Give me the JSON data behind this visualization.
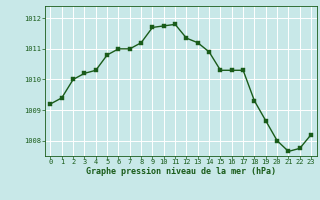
{
  "x": [
    0,
    1,
    2,
    3,
    4,
    5,
    6,
    7,
    8,
    9,
    10,
    11,
    12,
    13,
    14,
    15,
    16,
    17,
    18,
    19,
    20,
    21,
    22,
    23
  ],
  "y": [
    1009.2,
    1009.4,
    1010.0,
    1010.2,
    1010.3,
    1010.8,
    1011.0,
    1011.0,
    1011.2,
    1011.7,
    1011.75,
    1011.8,
    1011.35,
    1011.2,
    1010.9,
    1010.3,
    1010.3,
    1010.3,
    1009.3,
    1008.65,
    1008.0,
    1007.65,
    1007.75,
    1008.2
  ],
  "line_color": "#1a5c1a",
  "marker_color": "#1a5c1a",
  "bg_color": "#c8e8e8",
  "grid_color": "#ffffff",
  "xlabel": "Graphe pression niveau de la mer (hPa)",
  "xlabel_color": "#1a5c1a",
  "tick_color": "#1a5c1a",
  "ylim": [
    1007.5,
    1012.4
  ],
  "yticks": [
    1008,
    1009,
    1010,
    1011,
    1012
  ],
  "xticks": [
    0,
    1,
    2,
    3,
    4,
    5,
    6,
    7,
    8,
    9,
    10,
    11,
    12,
    13,
    14,
    15,
    16,
    17,
    18,
    19,
    20,
    21,
    22,
    23
  ],
  "marker_size": 2.5,
  "line_width": 1.0
}
